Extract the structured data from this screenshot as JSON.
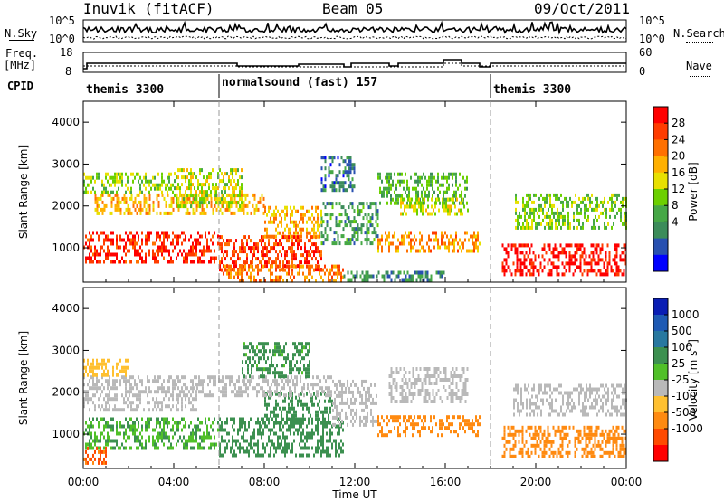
{
  "header": {
    "title": "Inuvik (fitACF)",
    "beam": "Beam 05",
    "date": "09/Oct/2011"
  },
  "top_panels": {
    "nsky_label": "N.Sky",
    "nsky_ticks": [
      "10^5",
      "10^0"
    ],
    "nsearch_label": "N.Search",
    "nsearch_ticks": [
      "10^5",
      "10^0"
    ],
    "freq_label_1": "Freq.",
    "freq_label_2": "[MHz]",
    "freq_ticks": [
      "18",
      "8"
    ],
    "nave_label": "Nave",
    "nave_ticks": [
      "60",
      "0"
    ],
    "cpid_label": "CPID"
  },
  "cpid_segments": [
    {
      "name": "themis 3300",
      "start_hour": 0
    },
    {
      "name": "normalsound (fast) 157",
      "start_hour": 6
    },
    {
      "name": "themis 3300",
      "start_hour": 18
    }
  ],
  "colors": {
    "power_scale": [
      "#0000ff",
      "#2850b0",
      "#3c8c5a",
      "#46a846",
      "#6cd000",
      "#e8e000",
      "#ffb000",
      "#ff7000",
      "#ff3c00",
      "#ff0000"
    ],
    "velocity_scale": [
      "#ff0000",
      "#ff4a00",
      "#ff8a10",
      "#ffc030",
      "#b9b9b9",
      "#50c028",
      "#3c9050",
      "#2878a0",
      "#1e5ab4",
      "#0a1eb4"
    ]
  },
  "chart_data": [
    {
      "type": "heatmap",
      "title": "",
      "xlabel": "Time UT",
      "ylabel": "Slant Range [km]",
      "xlim": [
        0,
        24
      ],
      "ylim": [
        180,
        4500
      ],
      "x_ticks": [
        "00:00",
        "04:00",
        "08:00",
        "12:00",
        "16:00",
        "20:00",
        "00:00"
      ],
      "y_ticks": [
        "1000",
        "2000",
        "3000",
        "4000"
      ],
      "colorbar_label": "Power [dB]",
      "colorbar_ticks": [
        "28",
        "24",
        "20",
        "16",
        "12",
        "8",
        "4"
      ],
      "colorbar_range": [
        0,
        30
      ],
      "bands": [
        {
          "t0": 0.0,
          "t1": 6.0,
          "r0": 650,
          "r1": 1400,
          "value": 27
        },
        {
          "t0": 6.0,
          "t1": 10.5,
          "r0": 500,
          "r1": 1300,
          "value": 26
        },
        {
          "t0": 6.0,
          "t1": 11.5,
          "r0": 200,
          "r1": 600,
          "value": 22
        },
        {
          "t0": 13.0,
          "t1": 17.5,
          "r0": 950,
          "r1": 1400,
          "value": 21
        },
        {
          "t0": 18.5,
          "t1": 24.0,
          "r0": 350,
          "r1": 1100,
          "value": 29
        },
        {
          "t0": 0.5,
          "t1": 8.0,
          "r0": 1800,
          "r1": 2300,
          "value": 19
        },
        {
          "t0": 0.0,
          "t1": 4.0,
          "r0": 2300,
          "r1": 2800,
          "value": 14
        },
        {
          "t0": 10.5,
          "t1": 13.0,
          "r0": 1100,
          "r1": 2100,
          "value": 9
        },
        {
          "t0": 13.0,
          "t1": 17.0,
          "r0": 2100,
          "r1": 2800,
          "value": 11
        },
        {
          "t0": 14.0,
          "t1": 17.0,
          "r0": 1800,
          "r1": 2200,
          "value": 16
        },
        {
          "t0": 19.0,
          "t1": 24.0,
          "r0": 1500,
          "r1": 2300,
          "value": 13
        },
        {
          "t0": 8.0,
          "t1": 10.5,
          "r0": 1300,
          "r1": 2000,
          "value": 20
        },
        {
          "t0": 4.0,
          "t1": 7.0,
          "r0": 2000,
          "r1": 2900,
          "value": 15
        },
        {
          "t0": 10.5,
          "t1": 12.0,
          "r0": 2400,
          "r1": 3200,
          "value": 6
        },
        {
          "t0": 11.5,
          "t1": 16.0,
          "r0": 200,
          "r1": 450,
          "value": 8
        }
      ]
    },
    {
      "type": "heatmap",
      "title": "",
      "xlabel": "Time UT",
      "ylabel": "Slant Range [km]",
      "xlim": [
        0,
        24
      ],
      "ylim": [
        180,
        4500
      ],
      "x_ticks": [
        "00:00",
        "04:00",
        "08:00",
        "12:00",
        "16:00",
        "20:00",
        "00:00"
      ],
      "y_ticks": [
        "1000",
        "2000",
        "3000",
        "4000"
      ],
      "colorbar_label": "Velocity [m s^-1]",
      "colorbar_ticks": [
        "1000",
        "500",
        "100",
        "25",
        "-25",
        "-100",
        "-500",
        "-1000"
      ],
      "colorbar_levels": [
        -1000,
        -500,
        -100,
        -25,
        25,
        100,
        500,
        1000
      ],
      "bands": [
        {
          "t0": 0.0,
          "t1": 6.0,
          "r0": 700,
          "r1": 1400,
          "value": 90
        },
        {
          "t0": 6.0,
          "t1": 11.5,
          "r0": 450,
          "r1": 1400,
          "value": 300
        },
        {
          "t0": 8.0,
          "t1": 11.0,
          "r0": 1300,
          "r1": 2000,
          "value": 250
        },
        {
          "t0": 0.0,
          "t1": 5.0,
          "r0": 1600,
          "r1": 2400,
          "value": 0
        },
        {
          "t0": 5.0,
          "t1": 11.0,
          "r0": 1900,
          "r1": 2400,
          "value": 0
        },
        {
          "t0": 0.0,
          "t1": 2.0,
          "r0": 2400,
          "r1": 2800,
          "value": -60
        },
        {
          "t0": 11.0,
          "t1": 13.0,
          "r0": 1200,
          "r1": 2300,
          "value": 0
        },
        {
          "t0": 13.0,
          "t1": 17.5,
          "r0": 1000,
          "r1": 1450,
          "value": -200
        },
        {
          "t0": 13.5,
          "t1": 17.0,
          "r0": 1800,
          "r1": 2600,
          "value": 0
        },
        {
          "t0": 18.5,
          "t1": 24.0,
          "r0": 500,
          "r1": 1200,
          "value": -200
        },
        {
          "t0": 19.0,
          "t1": 24.0,
          "r0": 1500,
          "r1": 2200,
          "value": 0
        },
        {
          "t0": 0.0,
          "t1": 1.0,
          "r0": 350,
          "r1": 700,
          "value": -600
        },
        {
          "t0": 7.0,
          "t1": 10.0,
          "r0": 2400,
          "r1": 3200,
          "value": 150
        }
      ]
    }
  ]
}
